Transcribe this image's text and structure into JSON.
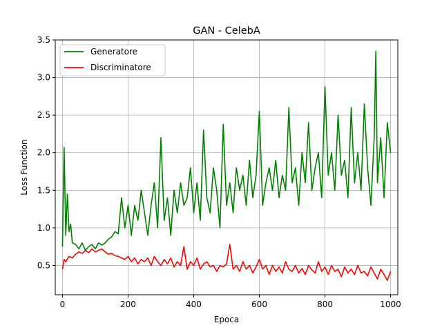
{
  "chart_data": {
    "type": "line",
    "title": "GAN - CelebA",
    "xlabel": "Epoca",
    "ylabel": "Loss Function",
    "xlim": [
      -22,
      1022
    ],
    "ylim": [
      0.11,
      3.5
    ],
    "xticks": [
      0,
      200,
      400,
      600,
      800,
      1000
    ],
    "yticks": [
      0.5,
      1.0,
      1.5,
      2.0,
      2.5,
      3.0,
      3.5
    ],
    "xtick_labels": [
      "0",
      "200",
      "400",
      "600",
      "800",
      "1000"
    ],
    "ytick_labels": [
      "0.5",
      "1.0",
      "1.5",
      "2.0",
      "2.5",
      "3.0",
      "3.5"
    ],
    "grid": true,
    "legend_position": "upper-left",
    "series": [
      {
        "name": "Generatore",
        "color": "#008000",
        "x": [
          0,
          5,
          10,
          15,
          20,
          25,
          30,
          40,
          50,
          60,
          70,
          80,
          90,
          100,
          110,
          120,
          130,
          140,
          150,
          160,
          170,
          180,
          190,
          200,
          210,
          220,
          230,
          240,
          250,
          260,
          270,
          280,
          290,
          300,
          310,
          320,
          330,
          340,
          350,
          360,
          370,
          380,
          390,
          400,
          410,
          420,
          430,
          440,
          450,
          460,
          470,
          480,
          490,
          500,
          510,
          520,
          530,
          540,
          550,
          560,
          570,
          580,
          590,
          600,
          610,
          620,
          630,
          640,
          650,
          660,
          670,
          680,
          690,
          700,
          710,
          720,
          730,
          740,
          750,
          760,
          770,
          780,
          790,
          800,
          810,
          820,
          830,
          840,
          850,
          860,
          870,
          880,
          890,
          900,
          910,
          920,
          930,
          940,
          950,
          955,
          960,
          970,
          980,
          990,
          1000
        ],
        "y": [
          0.75,
          2.07,
          0.9,
          1.45,
          0.95,
          1.05,
          0.8,
          0.78,
          0.72,
          0.8,
          0.7,
          0.75,
          0.78,
          0.72,
          0.8,
          0.77,
          0.8,
          0.85,
          0.88,
          0.95,
          0.92,
          1.4,
          1.0,
          1.3,
          0.9,
          1.3,
          1.1,
          1.5,
          1.2,
          0.9,
          1.3,
          1.6,
          1.0,
          2.2,
          1.1,
          1.4,
          0.9,
          1.5,
          1.2,
          1.6,
          1.3,
          1.4,
          1.8,
          1.2,
          1.6,
          1.1,
          2.3,
          1.4,
          1.2,
          1.8,
          1.5,
          1.0,
          2.38,
          1.3,
          1.6,
          1.2,
          1.8,
          1.5,
          1.7,
          1.3,
          1.9,
          1.4,
          1.7,
          2.55,
          1.3,
          1.6,
          1.8,
          1.5,
          1.9,
          1.4,
          1.7,
          1.5,
          2.6,
          1.6,
          1.8,
          1.3,
          2.0,
          1.6,
          2.4,
          1.5,
          1.8,
          2.0,
          1.4,
          2.88,
          1.7,
          2.0,
          1.5,
          2.5,
          1.7,
          1.9,
          1.4,
          2.6,
          1.6,
          2.0,
          1.5,
          2.65,
          1.8,
          1.3,
          2.2,
          3.35,
          1.6,
          2.2,
          1.4,
          2.4,
          2.0
        ]
      },
      {
        "name": "Discriminatore",
        "color": "#ff0000",
        "x": [
          0,
          5,
          10,
          20,
          30,
          40,
          50,
          60,
          70,
          80,
          90,
          100,
          110,
          120,
          130,
          140,
          150,
          160,
          170,
          180,
          190,
          200,
          210,
          220,
          230,
          240,
          250,
          260,
          270,
          280,
          290,
          300,
          310,
          320,
          330,
          340,
          350,
          360,
          370,
          380,
          390,
          400,
          410,
          420,
          430,
          440,
          450,
          460,
          470,
          480,
          490,
          500,
          510,
          520,
          530,
          540,
          550,
          560,
          570,
          580,
          590,
          600,
          610,
          620,
          630,
          640,
          650,
          660,
          670,
          680,
          690,
          700,
          710,
          720,
          730,
          740,
          750,
          760,
          770,
          780,
          790,
          800,
          810,
          820,
          830,
          840,
          850,
          860,
          870,
          880,
          890,
          900,
          910,
          920,
          930,
          940,
          950,
          960,
          970,
          980,
          990,
          1000
        ],
        "y": [
          0.45,
          0.58,
          0.55,
          0.62,
          0.6,
          0.65,
          0.68,
          0.66,
          0.7,
          0.67,
          0.72,
          0.68,
          0.7,
          0.72,
          0.68,
          0.65,
          0.66,
          0.63,
          0.62,
          0.6,
          0.58,
          0.62,
          0.55,
          0.6,
          0.52,
          0.58,
          0.55,
          0.6,
          0.5,
          0.62,
          0.55,
          0.5,
          0.58,
          0.52,
          0.6,
          0.48,
          0.55,
          0.5,
          0.75,
          0.45,
          0.55,
          0.5,
          0.6,
          0.45,
          0.52,
          0.55,
          0.48,
          0.5,
          0.42,
          0.5,
          0.48,
          0.52,
          0.78,
          0.45,
          0.5,
          0.42,
          0.55,
          0.45,
          0.5,
          0.4,
          0.48,
          0.58,
          0.45,
          0.5,
          0.38,
          0.5,
          0.42,
          0.48,
          0.4,
          0.55,
          0.45,
          0.42,
          0.5,
          0.4,
          0.46,
          0.38,
          0.5,
          0.44,
          0.4,
          0.55,
          0.42,
          0.48,
          0.38,
          0.5,
          0.42,
          0.45,
          0.35,
          0.48,
          0.4,
          0.45,
          0.38,
          0.5,
          0.4,
          0.42,
          0.36,
          0.48,
          0.4,
          0.32,
          0.45,
          0.38,
          0.3,
          0.42
        ]
      }
    ]
  }
}
